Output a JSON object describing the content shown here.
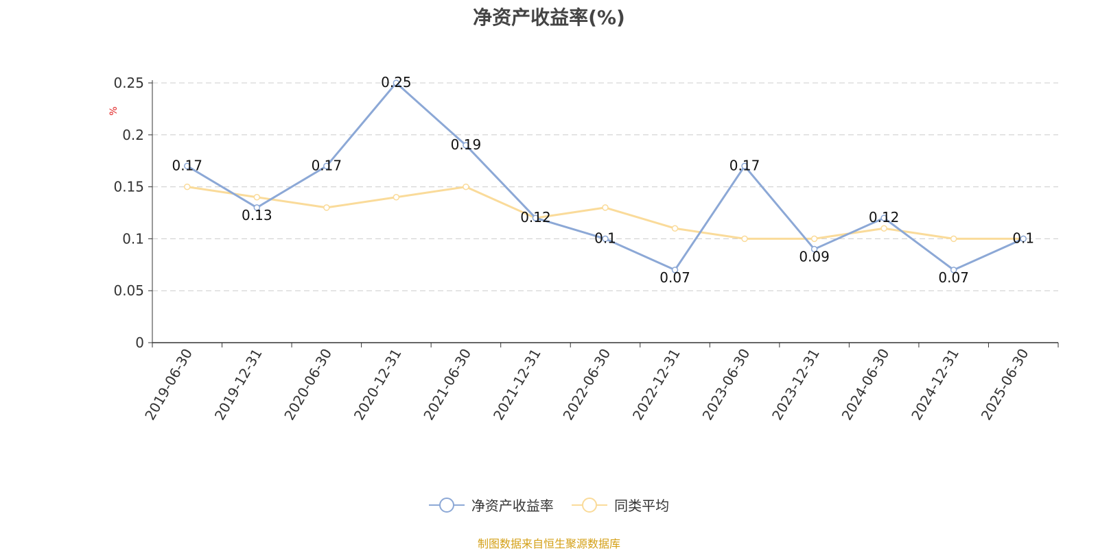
{
  "chart_data": {
    "type": "line",
    "title": "净资产收益率(%)",
    "ylabel": "%",
    "categories": [
      "2019-06-30",
      "2019-12-31",
      "2020-06-30",
      "2020-12-31",
      "2021-06-30",
      "2021-12-31",
      "2022-06-30",
      "2022-12-31",
      "2023-06-30",
      "2023-12-31",
      "2024-06-30",
      "2024-12-31",
      "2025-06-30"
    ],
    "series": [
      {
        "name": "净资产收益率",
        "color": "#8ca8d6",
        "values": [
          0.17,
          0.13,
          0.17,
          0.25,
          0.19,
          0.12,
          0.1,
          0.07,
          0.17,
          0.09,
          0.12,
          0.07,
          0.1
        ],
        "labels": [
          "0.17",
          "0.13",
          "0.17",
          "0.25",
          "0.19",
          "0.12",
          "0.1",
          "0.07",
          "0.17",
          "0.09",
          "0.12",
          "0.07",
          "0.1"
        ]
      },
      {
        "name": "同类平均",
        "color": "#fadb9a",
        "values": [
          0.15,
          0.14,
          0.13,
          0.14,
          0.15,
          0.12,
          0.13,
          0.11,
          0.1,
          0.1,
          0.11,
          0.1,
          0.1
        ]
      }
    ],
    "ylim": [
      0,
      0.25
    ],
    "yticks": [
      "0",
      "0.05",
      "0.1",
      "0.15",
      "0.2",
      "0.25"
    ],
    "grid": true,
    "legend_position": "bottom"
  },
  "footer": {
    "source": "制图数据来自恒生聚源数据库"
  }
}
